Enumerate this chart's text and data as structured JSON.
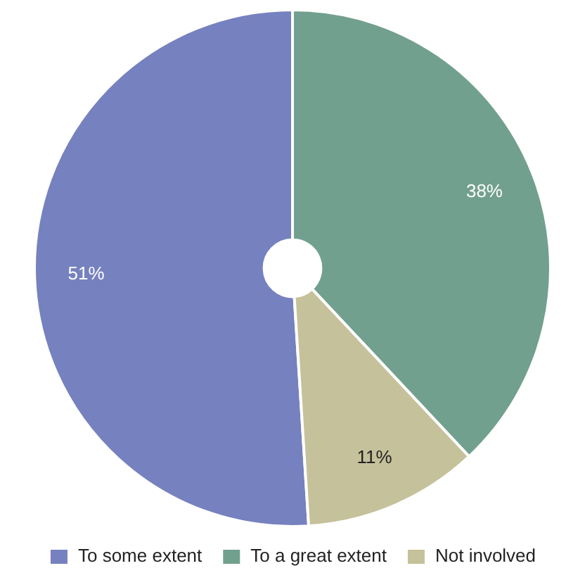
{
  "chart_data": {
    "type": "pie",
    "categories": [
      "To some extent",
      "To a great extent",
      "Not involved"
    ],
    "values": [
      51,
      38,
      11
    ],
    "colors": [
      "#7681bf",
      "#72a08e",
      "#c5c19a"
    ],
    "value_labels": [
      "51%",
      "38%",
      "11%"
    ],
    "legend": "bottom"
  }
}
